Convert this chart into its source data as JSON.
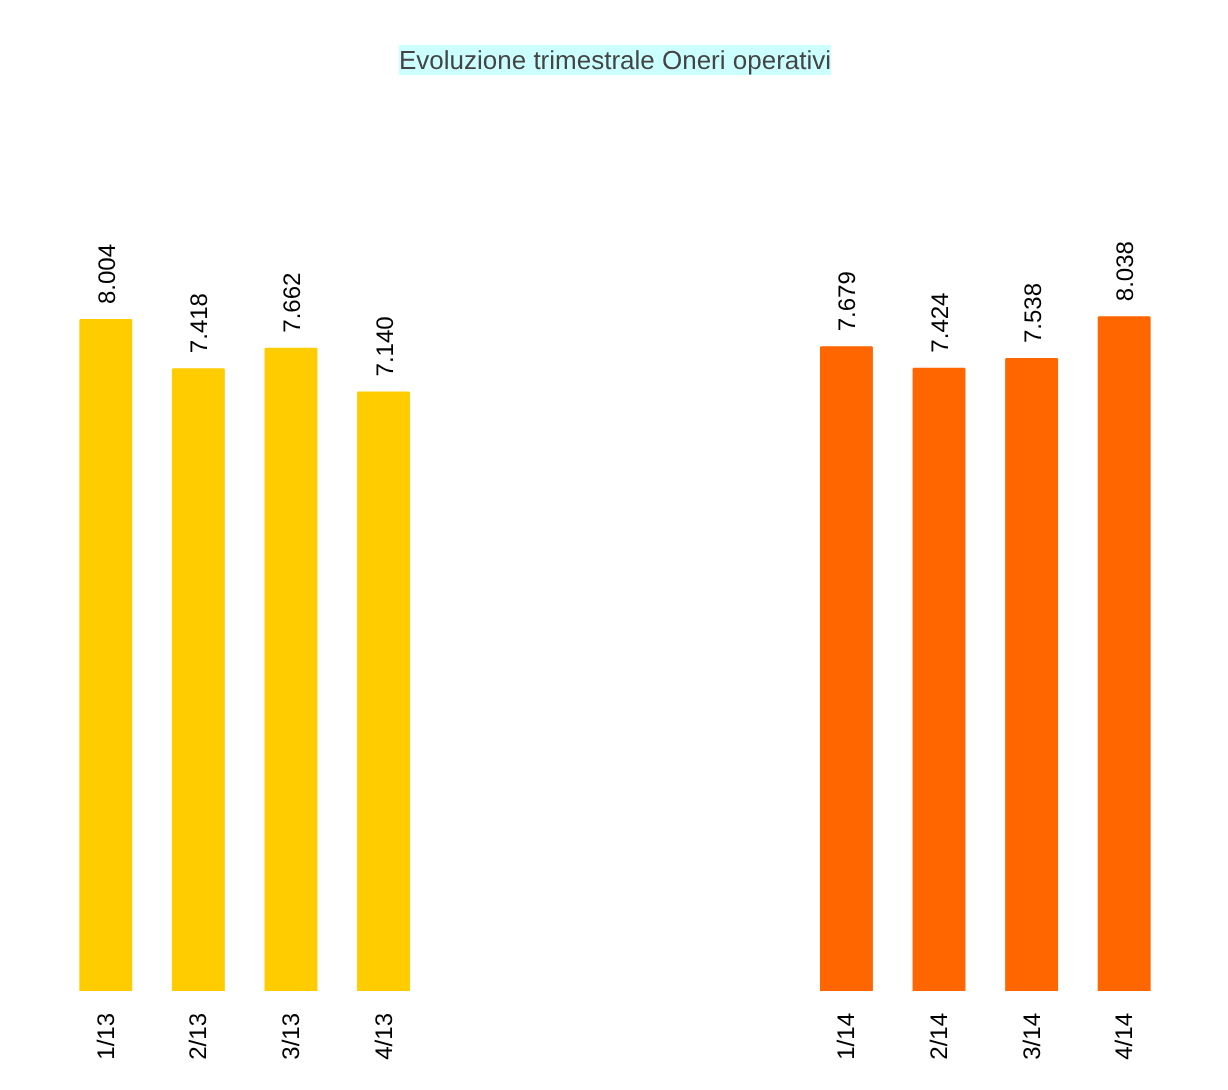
{
  "chart_data": {
    "type": "bar",
    "title": "Evoluzione trimestrale Oneri operativi",
    "categories": [
      "1/13",
      "2/13",
      "3/13",
      "4/13",
      null,
      null,
      null,
      null,
      "1/14",
      "2/14",
      "3/14",
      "4/14"
    ],
    "values": [
      8004,
      7418,
      7662,
      7140,
      null,
      null,
      null,
      null,
      7679,
      7424,
      7538,
      8038
    ],
    "colors": [
      "#ffcc00",
      "#ffcc00",
      "#ffcc00",
      "#ffcc00",
      "#ffcc00",
      "#ffcc00",
      "#ffcc00",
      "#ffcc00",
      "#ff6600",
      "#ff6600",
      "#ff6600",
      "#ff6600"
    ],
    "value_labels": [
      "8.004",
      "7.418",
      "7.662",
      "7.140",
      null,
      null,
      null,
      null,
      "7.679",
      "7.424",
      "7.538",
      "8.038"
    ]
  }
}
